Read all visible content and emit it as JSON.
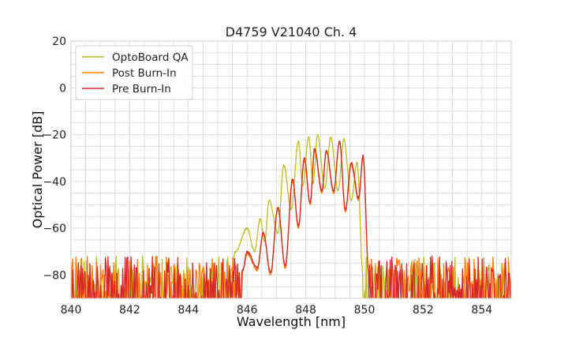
{
  "chart_data": {
    "type": "line",
    "title": "D4759 V21040 Ch. 4",
    "xlabel": "Wavelength [nm]",
    "ylabel": "Optical Power [dB]",
    "xlim": [
      840,
      855
    ],
    "ylim": [
      -90,
      20
    ],
    "xticks": [
      840,
      842,
      844,
      846,
      848,
      850,
      852,
      854
    ],
    "xtick_labels": [
      "840",
      "842",
      "844",
      "846",
      "848",
      "850",
      "852",
      "854"
    ],
    "yticks": [
      20,
      0,
      -20,
      -40,
      -60,
      -80
    ],
    "ytick_labels": [
      "20",
      "0",
      "−20",
      "−40",
      "−60",
      "−80"
    ],
    "grid": true,
    "legend_position": "upper-left",
    "series": [
      {
        "name": "OptoBoard QA",
        "color": "#bcbd22",
        "floor_band": [
          -90,
          -72
        ],
        "peaks": [
          {
            "x": 845.6,
            "y": -70
          },
          {
            "x": 846.0,
            "y": -60
          },
          {
            "x": 846.45,
            "y": -56
          },
          {
            "x": 846.75,
            "y": -48
          },
          {
            "x": 847.25,
            "y": -33
          },
          {
            "x": 847.75,
            "y": -23
          },
          {
            "x": 848.1,
            "y": -21
          },
          {
            "x": 848.4,
            "y": -20
          },
          {
            "x": 848.85,
            "y": -21
          },
          {
            "x": 849.3,
            "y": -22
          },
          {
            "x": 849.75,
            "y": -32
          }
        ],
        "troughs": [
          {
            "x": 846.25,
            "y": -70
          },
          {
            "x": 846.6,
            "y": -66
          },
          {
            "x": 847.05,
            "y": -62
          },
          {
            "x": 847.5,
            "y": -52
          },
          {
            "x": 847.9,
            "y": -42
          },
          {
            "x": 848.25,
            "y": -41
          },
          {
            "x": 848.65,
            "y": -43
          },
          {
            "x": 849.1,
            "y": -44
          },
          {
            "x": 849.55,
            "y": -48
          }
        ]
      },
      {
        "name": "Post Burn-In",
        "color": "#ff7f0e",
        "floor_band": [
          -90,
          -72
        ],
        "peaks": [
          {
            "x": 846.0,
            "y": -71
          },
          {
            "x": 846.55,
            "y": -62
          },
          {
            "x": 847.05,
            "y": -52
          },
          {
            "x": 847.55,
            "y": -40
          },
          {
            "x": 847.95,
            "y": -31
          },
          {
            "x": 848.3,
            "y": -27
          },
          {
            "x": 848.7,
            "y": -27
          },
          {
            "x": 849.15,
            "y": -23
          },
          {
            "x": 849.55,
            "y": -33
          },
          {
            "x": 849.95,
            "y": -30
          }
        ],
        "troughs": [
          {
            "x": 846.35,
            "y": -78
          },
          {
            "x": 846.8,
            "y": -80
          },
          {
            "x": 847.3,
            "y": -77
          },
          {
            "x": 847.75,
            "y": -60
          },
          {
            "x": 848.15,
            "y": -50
          },
          {
            "x": 848.55,
            "y": -45
          },
          {
            "x": 848.95,
            "y": -45
          },
          {
            "x": 849.35,
            "y": -53
          },
          {
            "x": 849.8,
            "y": -48
          }
        ]
      },
      {
        "name": "Pre Burn-In",
        "color": "#d62728",
        "floor_band": [
          -90,
          -72
        ],
        "peaks": [
          {
            "x": 846.0,
            "y": -70
          },
          {
            "x": 846.55,
            "y": -62
          },
          {
            "x": 847.05,
            "y": -51
          },
          {
            "x": 847.55,
            "y": -39
          },
          {
            "x": 847.95,
            "y": -30
          },
          {
            "x": 848.3,
            "y": -26
          },
          {
            "x": 848.7,
            "y": -27
          },
          {
            "x": 849.15,
            "y": -23
          },
          {
            "x": 849.55,
            "y": -32
          },
          {
            "x": 849.95,
            "y": -29
          }
        ],
        "troughs": [
          {
            "x": 846.35,
            "y": -77
          },
          {
            "x": 846.8,
            "y": -79
          },
          {
            "x": 847.3,
            "y": -76
          },
          {
            "x": 847.75,
            "y": -59
          },
          {
            "x": 848.15,
            "y": -49
          },
          {
            "x": 848.55,
            "y": -44
          },
          {
            "x": 848.95,
            "y": -44
          },
          {
            "x": 849.35,
            "y": -52
          },
          {
            "x": 849.8,
            "y": -47
          }
        ]
      }
    ]
  }
}
